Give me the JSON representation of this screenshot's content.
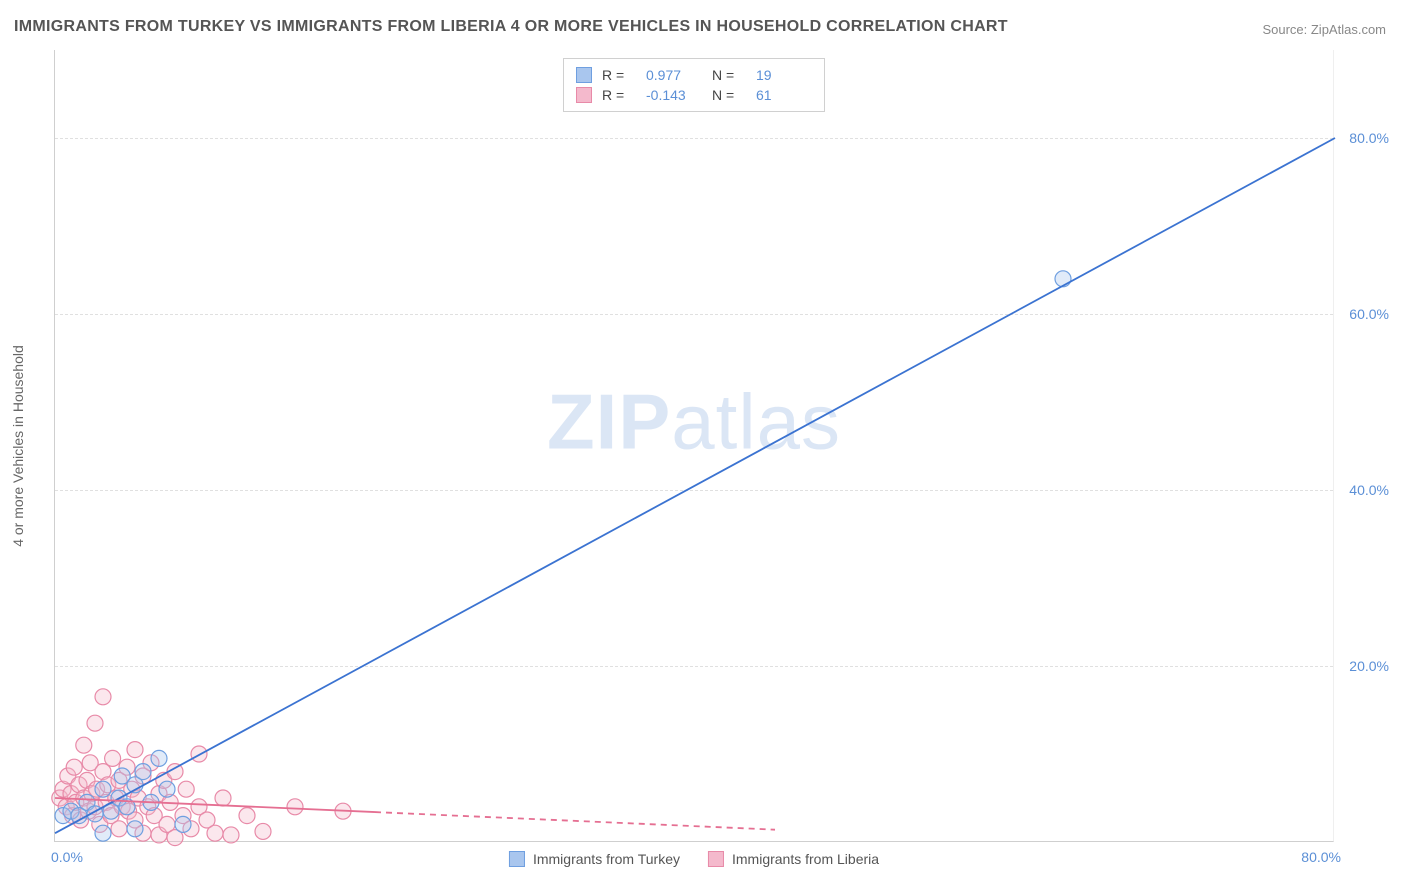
{
  "title": "IMMIGRANTS FROM TURKEY VS IMMIGRANTS FROM LIBERIA 4 OR MORE VEHICLES IN HOUSEHOLD CORRELATION CHART",
  "source": "Source: ZipAtlas.com",
  "watermark": "ZIPatlas",
  "y_axis_label": "4 or more Vehicles in Household",
  "chart": {
    "type": "scatter",
    "background_color": "#ffffff",
    "grid_color": "#e0e0e0",
    "grid_dash": "4,4",
    "axis_color": "#cfcfcf",
    "xlim": [
      0,
      80
    ],
    "ylim": [
      0,
      90
    ],
    "y_ticks": [
      20,
      40,
      60,
      80
    ],
    "y_tick_labels": [
      "20.0%",
      "40.0%",
      "60.0%",
      "80.0%"
    ],
    "x_tick_values": [
      0,
      80
    ],
    "x_tick_labels": [
      "0.0%",
      "80.0%"
    ],
    "tick_fontsize": 14,
    "tick_color": "#5b8fd6",
    "marker_radius": 8,
    "marker_stroke_width": 1.2,
    "marker_fill_opacity": 0.35,
    "line_width": 1.8
  },
  "series": {
    "turkey": {
      "label": "Immigrants from Turkey",
      "color_stroke": "#6f9fe0",
      "color_fill": "#a9c6ee",
      "line_color": "#3b73d1",
      "R": "0.977",
      "N": "19",
      "regression": {
        "x1": 0,
        "y1": 1.0,
        "x2": 80,
        "y2": 80.0,
        "dash": null
      },
      "points": [
        [
          0.5,
          3.0
        ],
        [
          1.0,
          3.5
        ],
        [
          1.5,
          3.0
        ],
        [
          2.0,
          4.5
        ],
        [
          2.5,
          3.2
        ],
        [
          3.0,
          6.0
        ],
        [
          3.5,
          3.5
        ],
        [
          4.0,
          5.0
        ],
        [
          4.2,
          7.5
        ],
        [
          4.5,
          4.0
        ],
        [
          5.0,
          6.5
        ],
        [
          5.5,
          8.0
        ],
        [
          6.0,
          4.5
        ],
        [
          6.5,
          9.5
        ],
        [
          7.0,
          6.0
        ],
        [
          5.0,
          1.5
        ],
        [
          3.0,
          1.0
        ],
        [
          8.0,
          2.0
        ],
        [
          63.0,
          64.0
        ]
      ]
    },
    "liberia": {
      "label": "Immigrants from Liberia",
      "color_stroke": "#e88aa8",
      "color_fill": "#f4b9cc",
      "line_color": "#e56f92",
      "R": "-0.143",
      "N": "61",
      "regression_solid": {
        "x1": 0,
        "y1": 5.0,
        "x2": 20,
        "y2": 3.4
      },
      "regression_dash": {
        "x1": 20,
        "y1": 3.4,
        "x2": 45,
        "y2": 1.4,
        "dash": "6,5"
      },
      "points": [
        [
          0.3,
          5.0
        ],
        [
          0.5,
          6.0
        ],
        [
          0.7,
          4.0
        ],
        [
          0.8,
          7.5
        ],
        [
          1.0,
          5.5
        ],
        [
          1.1,
          3.0
        ],
        [
          1.2,
          8.5
        ],
        [
          1.3,
          4.5
        ],
        [
          1.5,
          6.5
        ],
        [
          1.6,
          2.5
        ],
        [
          1.8,
          5.0
        ],
        [
          1.8,
          11.0
        ],
        [
          2.0,
          7.0
        ],
        [
          2.1,
          3.5
        ],
        [
          2.2,
          9.0
        ],
        [
          2.3,
          5.5
        ],
        [
          2.5,
          4.0
        ],
        [
          2.5,
          13.5
        ],
        [
          2.6,
          6.0
        ],
        [
          2.8,
          2.0
        ],
        [
          3.0,
          8.0
        ],
        [
          3.0,
          16.5
        ],
        [
          3.2,
          4.5
        ],
        [
          3.3,
          6.5
        ],
        [
          3.5,
          3.0
        ],
        [
          3.6,
          9.5
        ],
        [
          3.8,
          5.0
        ],
        [
          4.0,
          7.0
        ],
        [
          4.0,
          1.5
        ],
        [
          4.2,
          4.0
        ],
        [
          4.5,
          8.5
        ],
        [
          4.6,
          3.5
        ],
        [
          4.8,
          6.0
        ],
        [
          5.0,
          2.5
        ],
        [
          5.0,
          10.5
        ],
        [
          5.2,
          5.0
        ],
        [
          5.5,
          7.5
        ],
        [
          5.5,
          1.0
        ],
        [
          5.8,
          4.0
        ],
        [
          6.0,
          9.0
        ],
        [
          6.2,
          3.0
        ],
        [
          6.5,
          5.5
        ],
        [
          6.5,
          0.8
        ],
        [
          6.8,
          7.0
        ],
        [
          7.0,
          2.0
        ],
        [
          7.2,
          4.5
        ],
        [
          7.5,
          8.0
        ],
        [
          7.5,
          0.5
        ],
        [
          8.0,
          3.0
        ],
        [
          8.2,
          6.0
        ],
        [
          8.5,
          1.5
        ],
        [
          9.0,
          10.0
        ],
        [
          9.0,
          4.0
        ],
        [
          9.5,
          2.5
        ],
        [
          10.0,
          1.0
        ],
        [
          10.5,
          5.0
        ],
        [
          11.0,
          0.8
        ],
        [
          12.0,
          3.0
        ],
        [
          13.0,
          1.2
        ],
        [
          15.0,
          4.0
        ],
        [
          18.0,
          3.5
        ]
      ]
    }
  },
  "legend_top": {
    "r_label": "R  =",
    "n_label": "N  ="
  }
}
